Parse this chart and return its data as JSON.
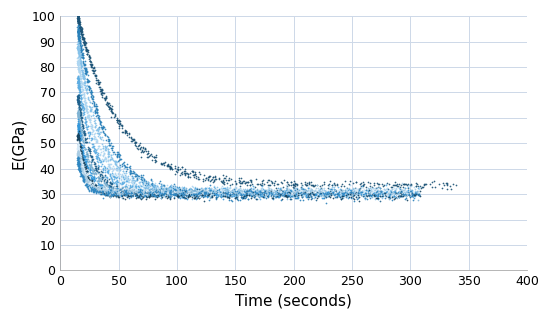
{
  "xlabel": "Time (seconds)",
  "ylabel": "E(GPa)",
  "xlim": [
    0,
    400
  ],
  "ylim": [
    0,
    100
  ],
  "xticks": [
    0,
    50,
    100,
    150,
    200,
    250,
    300,
    350,
    400
  ],
  "yticks": [
    0,
    10,
    20,
    30,
    40,
    50,
    60,
    70,
    80,
    90,
    100
  ],
  "background_color": "#ffffff",
  "grid_color": "#cdd8e8",
  "series": [
    {
      "color": "#1a5276",
      "t_start": 15,
      "t_end": 340,
      "peak_value": 99,
      "min_value": 33.5,
      "decay_rate": 0.028,
      "n_points": 700,
      "noise": 0.8
    },
    {
      "color": "#2980b9",
      "t_start": 15,
      "t_end": 308,
      "peak_value": 94,
      "min_value": 29.5,
      "decay_rate": 0.042,
      "n_points": 650,
      "noise": 1.0
    },
    {
      "color": "#85c1e9",
      "t_start": 15,
      "t_end": 308,
      "peak_value": 88,
      "min_value": 30.5,
      "decay_rate": 0.05,
      "n_points": 600,
      "noise": 1.0
    },
    {
      "color": "#aed6f1",
      "t_start": 15,
      "t_end": 308,
      "peak_value": 82,
      "min_value": 31.5,
      "decay_rate": 0.06,
      "n_points": 580,
      "noise": 1.0
    },
    {
      "color": "#5dade2",
      "t_start": 15,
      "t_end": 308,
      "peak_value": 75,
      "min_value": 31.0,
      "decay_rate": 0.07,
      "n_points": 550,
      "noise": 1.0
    },
    {
      "color": "#1f618d",
      "t_start": 15,
      "t_end": 308,
      "peak_value": 68,
      "min_value": 30.0,
      "decay_rate": 0.085,
      "n_points": 520,
      "noise": 0.9
    },
    {
      "color": "#7fb3d3",
      "t_start": 15,
      "t_end": 308,
      "peak_value": 62,
      "min_value": 30.5,
      "decay_rate": 0.1,
      "n_points": 500,
      "noise": 0.9
    },
    {
      "color": "#3498db",
      "t_start": 15,
      "t_end": 308,
      "peak_value": 57,
      "min_value": 30.0,
      "decay_rate": 0.115,
      "n_points": 480,
      "noise": 0.8
    },
    {
      "color": "#154360",
      "t_start": 15,
      "t_end": 308,
      "peak_value": 53,
      "min_value": 29.5,
      "decay_rate": 0.13,
      "n_points": 460,
      "noise": 0.8
    },
    {
      "color": "#d6eaf8",
      "t_start": 15,
      "t_end": 308,
      "peak_value": 49,
      "min_value": 31.0,
      "decay_rate": 0.15,
      "n_points": 440,
      "noise": 0.7
    },
    {
      "color": "#a9cce3",
      "t_start": 15,
      "t_end": 308,
      "peak_value": 46,
      "min_value": 31.0,
      "decay_rate": 0.17,
      "n_points": 420,
      "noise": 0.7
    },
    {
      "color": "#2e86c1",
      "t_start": 15,
      "t_end": 308,
      "peak_value": 43,
      "min_value": 30.5,
      "decay_rate": 0.19,
      "n_points": 400,
      "noise": 0.7
    }
  ],
  "dot_size": 1.5,
  "xlabel_fontsize": 11,
  "ylabel_fontsize": 11,
  "tick_fontsize": 9,
  "figwidth": 5.5,
  "figheight": 3.2
}
